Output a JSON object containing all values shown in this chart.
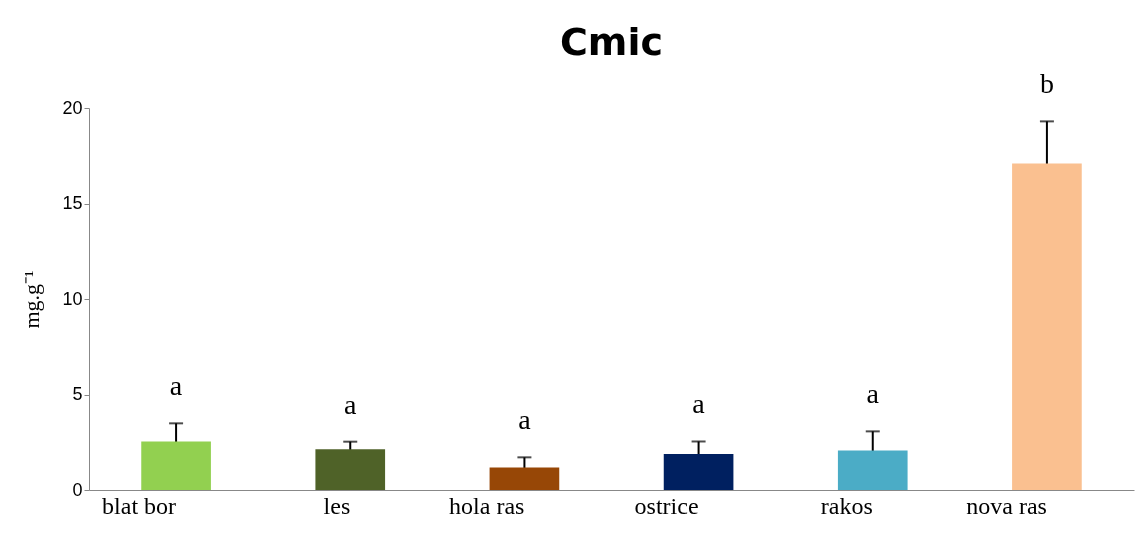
{
  "chart_data": {
    "type": "bar",
    "title": "Cmic",
    "ylabel": "mg.g⁻¹",
    "categories": [
      "blat bor",
      "les",
      "hola ras",
      "ostrice",
      "rakos",
      "nova ras"
    ],
    "values": [
      2.54,
      2.13,
      1.18,
      1.89,
      2.07,
      17.1
    ],
    "colors": [
      "#92d050",
      "#4f6228",
      "#974706",
      "#002060",
      "#4bacc6",
      "#fac090"
    ],
    "errors": [
      0.95,
      0.4,
      0.53,
      0.65,
      1.0,
      2.2
    ],
    "ylim": [
      0,
      20
    ],
    "yticks": [
      0,
      5,
      10,
      15,
      20
    ],
    "grid": false,
    "legend": false,
    "annotations": [
      "a",
      "a",
      "a",
      "a",
      "a",
      "b"
    ]
  }
}
